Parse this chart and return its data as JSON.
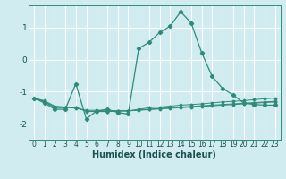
{
  "title": "",
  "xlabel": "Humidex (Indice chaleur)",
  "ylabel": "",
  "xlim": [
    -0.5,
    23.5
  ],
  "ylim": [
    -2.5,
    1.7
  ],
  "yticks": [
    -2,
    -1,
    0,
    1
  ],
  "xticks": [
    0,
    1,
    2,
    3,
    4,
    5,
    6,
    7,
    8,
    9,
    10,
    11,
    12,
    13,
    14,
    15,
    16,
    17,
    18,
    19,
    20,
    21,
    22,
    23
  ],
  "bg_color": "#d0ecf0",
  "grid_color": "#ffffff",
  "line_color": "#2e8b7a",
  "series_x": [
    0,
    1,
    2,
    3,
    4,
    5,
    6,
    7,
    8,
    9,
    10,
    11,
    12,
    13,
    14,
    15,
    16,
    17,
    18,
    19,
    20,
    21,
    22,
    23
  ],
  "series1": [
    -1.2,
    -1.35,
    -1.55,
    -1.55,
    -0.75,
    -1.85,
    -1.6,
    -1.55,
    -1.65,
    -1.7,
    0.35,
    0.55,
    0.85,
    1.05,
    1.5,
    1.15,
    0.22,
    -0.52,
    -0.9,
    -1.1,
    -1.35,
    -1.4,
    -1.42,
    -1.42
  ],
  "series2": [
    -1.2,
    -1.32,
    -1.5,
    -1.5,
    -1.5,
    -1.6,
    -1.62,
    -1.62,
    -1.6,
    -1.6,
    -1.55,
    -1.5,
    -1.48,
    -1.45,
    -1.42,
    -1.4,
    -1.38,
    -1.35,
    -1.32,
    -1.3,
    -1.28,
    -1.25,
    -1.22,
    -1.2
  ],
  "series3": [
    -1.2,
    -1.3,
    -1.48,
    -1.48,
    -1.48,
    -1.62,
    -1.62,
    -1.62,
    -1.6,
    -1.6,
    -1.57,
    -1.55,
    -1.52,
    -1.5,
    -1.48,
    -1.46,
    -1.44,
    -1.42,
    -1.4,
    -1.38,
    -1.36,
    -1.34,
    -1.32,
    -1.3
  ],
  "series4": [
    -1.2,
    -1.28,
    -1.45,
    -1.48,
    -1.52,
    -1.58,
    -1.58,
    -1.6,
    -1.6,
    -1.6,
    -1.58,
    -1.56,
    -1.54,
    -1.52,
    -1.5,
    -1.48,
    -1.46,
    -1.44,
    -1.42,
    -1.4,
    -1.38,
    -1.36,
    -1.34,
    -1.32
  ]
}
